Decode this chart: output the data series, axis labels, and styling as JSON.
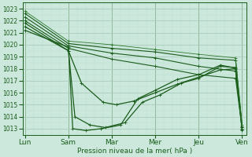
{
  "xlabel": "Pression niveau de la mer( hPa )",
  "ylim": [
    1012.5,
    1023.5
  ],
  "yticks": [
    1013,
    1014,
    1015,
    1016,
    1017,
    1018,
    1019,
    1020,
    1021,
    1022,
    1023
  ],
  "xtick_labels": [
    "Lun",
    "Sam",
    "Mar",
    "Mer",
    "Jeu",
    "Ven"
  ],
  "xtick_positions": [
    0,
    1,
    2,
    3,
    4,
    5
  ],
  "bg_color": "#cce8dd",
  "grid_major_color": "#aaccbb",
  "grid_minor_color": "#bbddd0",
  "line_color": "#1a5c1a",
  "line_color2": "#2d7a2d",
  "lines": [
    {
      "x": [
        0.0,
        1.0,
        2.0,
        3.0,
        4.0,
        4.85,
        5.0
      ],
      "y": [
        1022.6,
        1020.1,
        1019.7,
        1019.4,
        1018.9,
        1018.7,
        1013.2
      ],
      "lw": 0.8
    },
    {
      "x": [
        0.0,
        1.0,
        2.0,
        3.0,
        4.0,
        4.85,
        5.0
      ],
      "y": [
        1022.3,
        1019.9,
        1019.3,
        1018.9,
        1018.2,
        1017.8,
        1013.1
      ],
      "lw": 0.8
    },
    {
      "x": [
        0.0,
        1.0,
        2.0,
        3.0,
        4.0,
        4.85,
        5.0
      ],
      "y": [
        1022.0,
        1019.7,
        1018.8,
        1018.2,
        1017.5,
        1017.2,
        1013.0
      ],
      "lw": 0.8
    },
    {
      "x": [
        0.0,
        1.0,
        1.3,
        1.8,
        2.1,
        2.5,
        3.0,
        3.5,
        4.0,
        4.5,
        4.85,
        5.0
      ],
      "y": [
        1021.8,
        1019.5,
        1016.8,
        1015.2,
        1015.0,
        1015.3,
        1016.0,
        1016.7,
        1017.3,
        1017.9,
        1018.0,
        1013.1
      ],
      "lw": 0.9
    },
    {
      "x": [
        0.0,
        1.0,
        1.15,
        1.5,
        1.85,
        2.3,
        2.7,
        3.1,
        3.6,
        4.0,
        4.5,
        4.85,
        5.0
      ],
      "y": [
        1021.5,
        1019.5,
        1014.0,
        1013.3,
        1013.1,
        1013.5,
        1015.2,
        1015.8,
        1016.8,
        1017.2,
        1018.2,
        1018.1,
        1012.9
      ],
      "lw": 0.9
    },
    {
      "x": [
        0.0,
        1.0,
        1.1,
        1.4,
        1.75,
        2.2,
        2.6,
        3.0,
        3.5,
        4.0,
        4.5,
        4.85,
        5.0
      ],
      "y": [
        1021.2,
        1019.8,
        1013.0,
        1012.85,
        1013.0,
        1013.3,
        1015.5,
        1016.2,
        1017.1,
        1017.5,
        1018.3,
        1018.05,
        1012.85
      ],
      "lw": 0.9
    },
    {
      "x": [
        0.0,
        1.0,
        2.0,
        3.0,
        4.0,
        4.85,
        5.0
      ],
      "y": [
        1022.8,
        1020.3,
        1020.0,
        1019.6,
        1019.2,
        1018.9,
        1013.3
      ],
      "lw": 0.6
    }
  ]
}
